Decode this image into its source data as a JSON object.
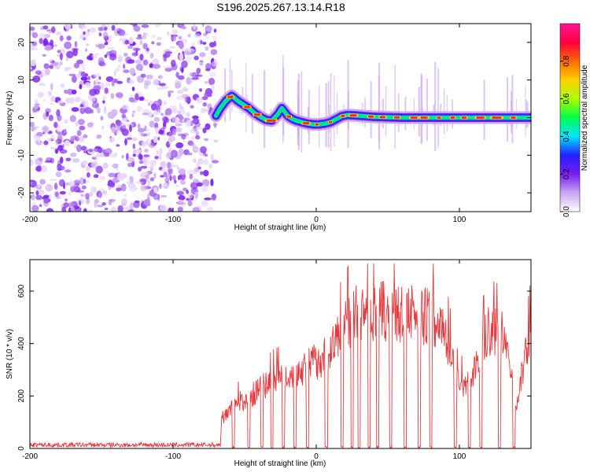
{
  "title": "S196.2025.267.13.14.R18",
  "chart_data": [
    {
      "type": "heatmap",
      "name": "spectrogram",
      "xlabel": "Height of straight line (km)",
      "ylabel": "Frequency (Hz)",
      "xlim": [
        -200,
        150
      ],
      "ylim": [
        -25,
        25
      ],
      "xticks": [
        -200,
        -100,
        0,
        100
      ],
      "xtick_labels": [
        "-200",
        "-100",
        "0",
        "100"
      ],
      "yticks": [
        -20,
        -10,
        0,
        10,
        20
      ],
      "ytick_labels": [
        "-20",
        "-10",
        "0",
        "10",
        "20"
      ],
      "noise_region_x": [
        -200,
        -70
      ],
      "ridge": {
        "x": [
          -70,
          -67,
          -63,
          -59,
          -55,
          -51,
          -47,
          -43,
          -39,
          -35,
          -31,
          -27,
          -24,
          -20,
          -17,
          -14,
          -10,
          -6,
          -2,
          2,
          6,
          10,
          14,
          18,
          22,
          30,
          40,
          60,
          80,
          100,
          120,
          140,
          150
        ],
        "y": [
          0.5,
          2.5,
          4.5,
          5.8,
          4.5,
          3.5,
          2.5,
          1.2,
          0.2,
          -0.6,
          -0.8,
          0.8,
          2.5,
          0.5,
          -0.3,
          -0.8,
          -1.2,
          -1.6,
          -1.8,
          -1.8,
          -1.6,
          -1.2,
          -0.4,
          0.4,
          0.7,
          0.5,
          0.2,
          0.0,
          0.0,
          0.0,
          0.0,
          0.0,
          0.0
        ]
      },
      "colorbar": {
        "label": "Normalized spectral amplitude",
        "range": [
          0,
          1
        ],
        "ticks": [
          0.0,
          0.2,
          0.4,
          0.6,
          0.8
        ],
        "tick_labels": [
          "0.0",
          "0.2",
          "0.4",
          "0.6",
          "0.8"
        ],
        "colors": [
          "#ffffff",
          "#c9a6f0",
          "#7a1cf5",
          "#2020ff",
          "#00e5ff",
          "#00ff4c",
          "#aaff00",
          "#ffd000",
          "#ff6a00",
          "#ff0040",
          "#ff1493"
        ]
      }
    },
    {
      "type": "line",
      "name": "snr",
      "xlabel": "Height of straight line (km)",
      "ylabel": "SNR (10 * v/v)",
      "xlim": [
        -200,
        150
      ],
      "ylim": [
        0,
        720
      ],
      "xticks": [
        -200,
        -100,
        0,
        100
      ],
      "xtick_labels": [
        "-200",
        "-100",
        "0",
        "100"
      ],
      "yticks": [
        0,
        200,
        400,
        600
      ],
      "ytick_labels": [
        "0",
        "200",
        "400",
        "600"
      ],
      "line_color": "#e8383d",
      "noise_level": 15,
      "envelope": {
        "x": [
          -200,
          -67,
          -66,
          -60,
          -50,
          -40,
          -30,
          -20,
          -10,
          0,
          10,
          20,
          30,
          40,
          50,
          60,
          70,
          80,
          90,
          100,
          110,
          120,
          130,
          140,
          150
        ],
        "y": [
          15,
          15,
          120,
          175,
          200,
          240,
          280,
          300,
          320,
          360,
          400,
          500,
          560,
          560,
          560,
          540,
          550,
          545,
          480,
          250,
          320,
          480,
          460,
          200,
          480
        ]
      },
      "dropouts_x": [
        -58,
        -47,
        -38,
        -31,
        -23,
        -15,
        -6,
        7,
        18,
        25,
        30,
        37,
        43,
        52,
        62,
        72,
        80,
        97,
        107,
        115,
        128,
        138
      ]
    }
  ]
}
